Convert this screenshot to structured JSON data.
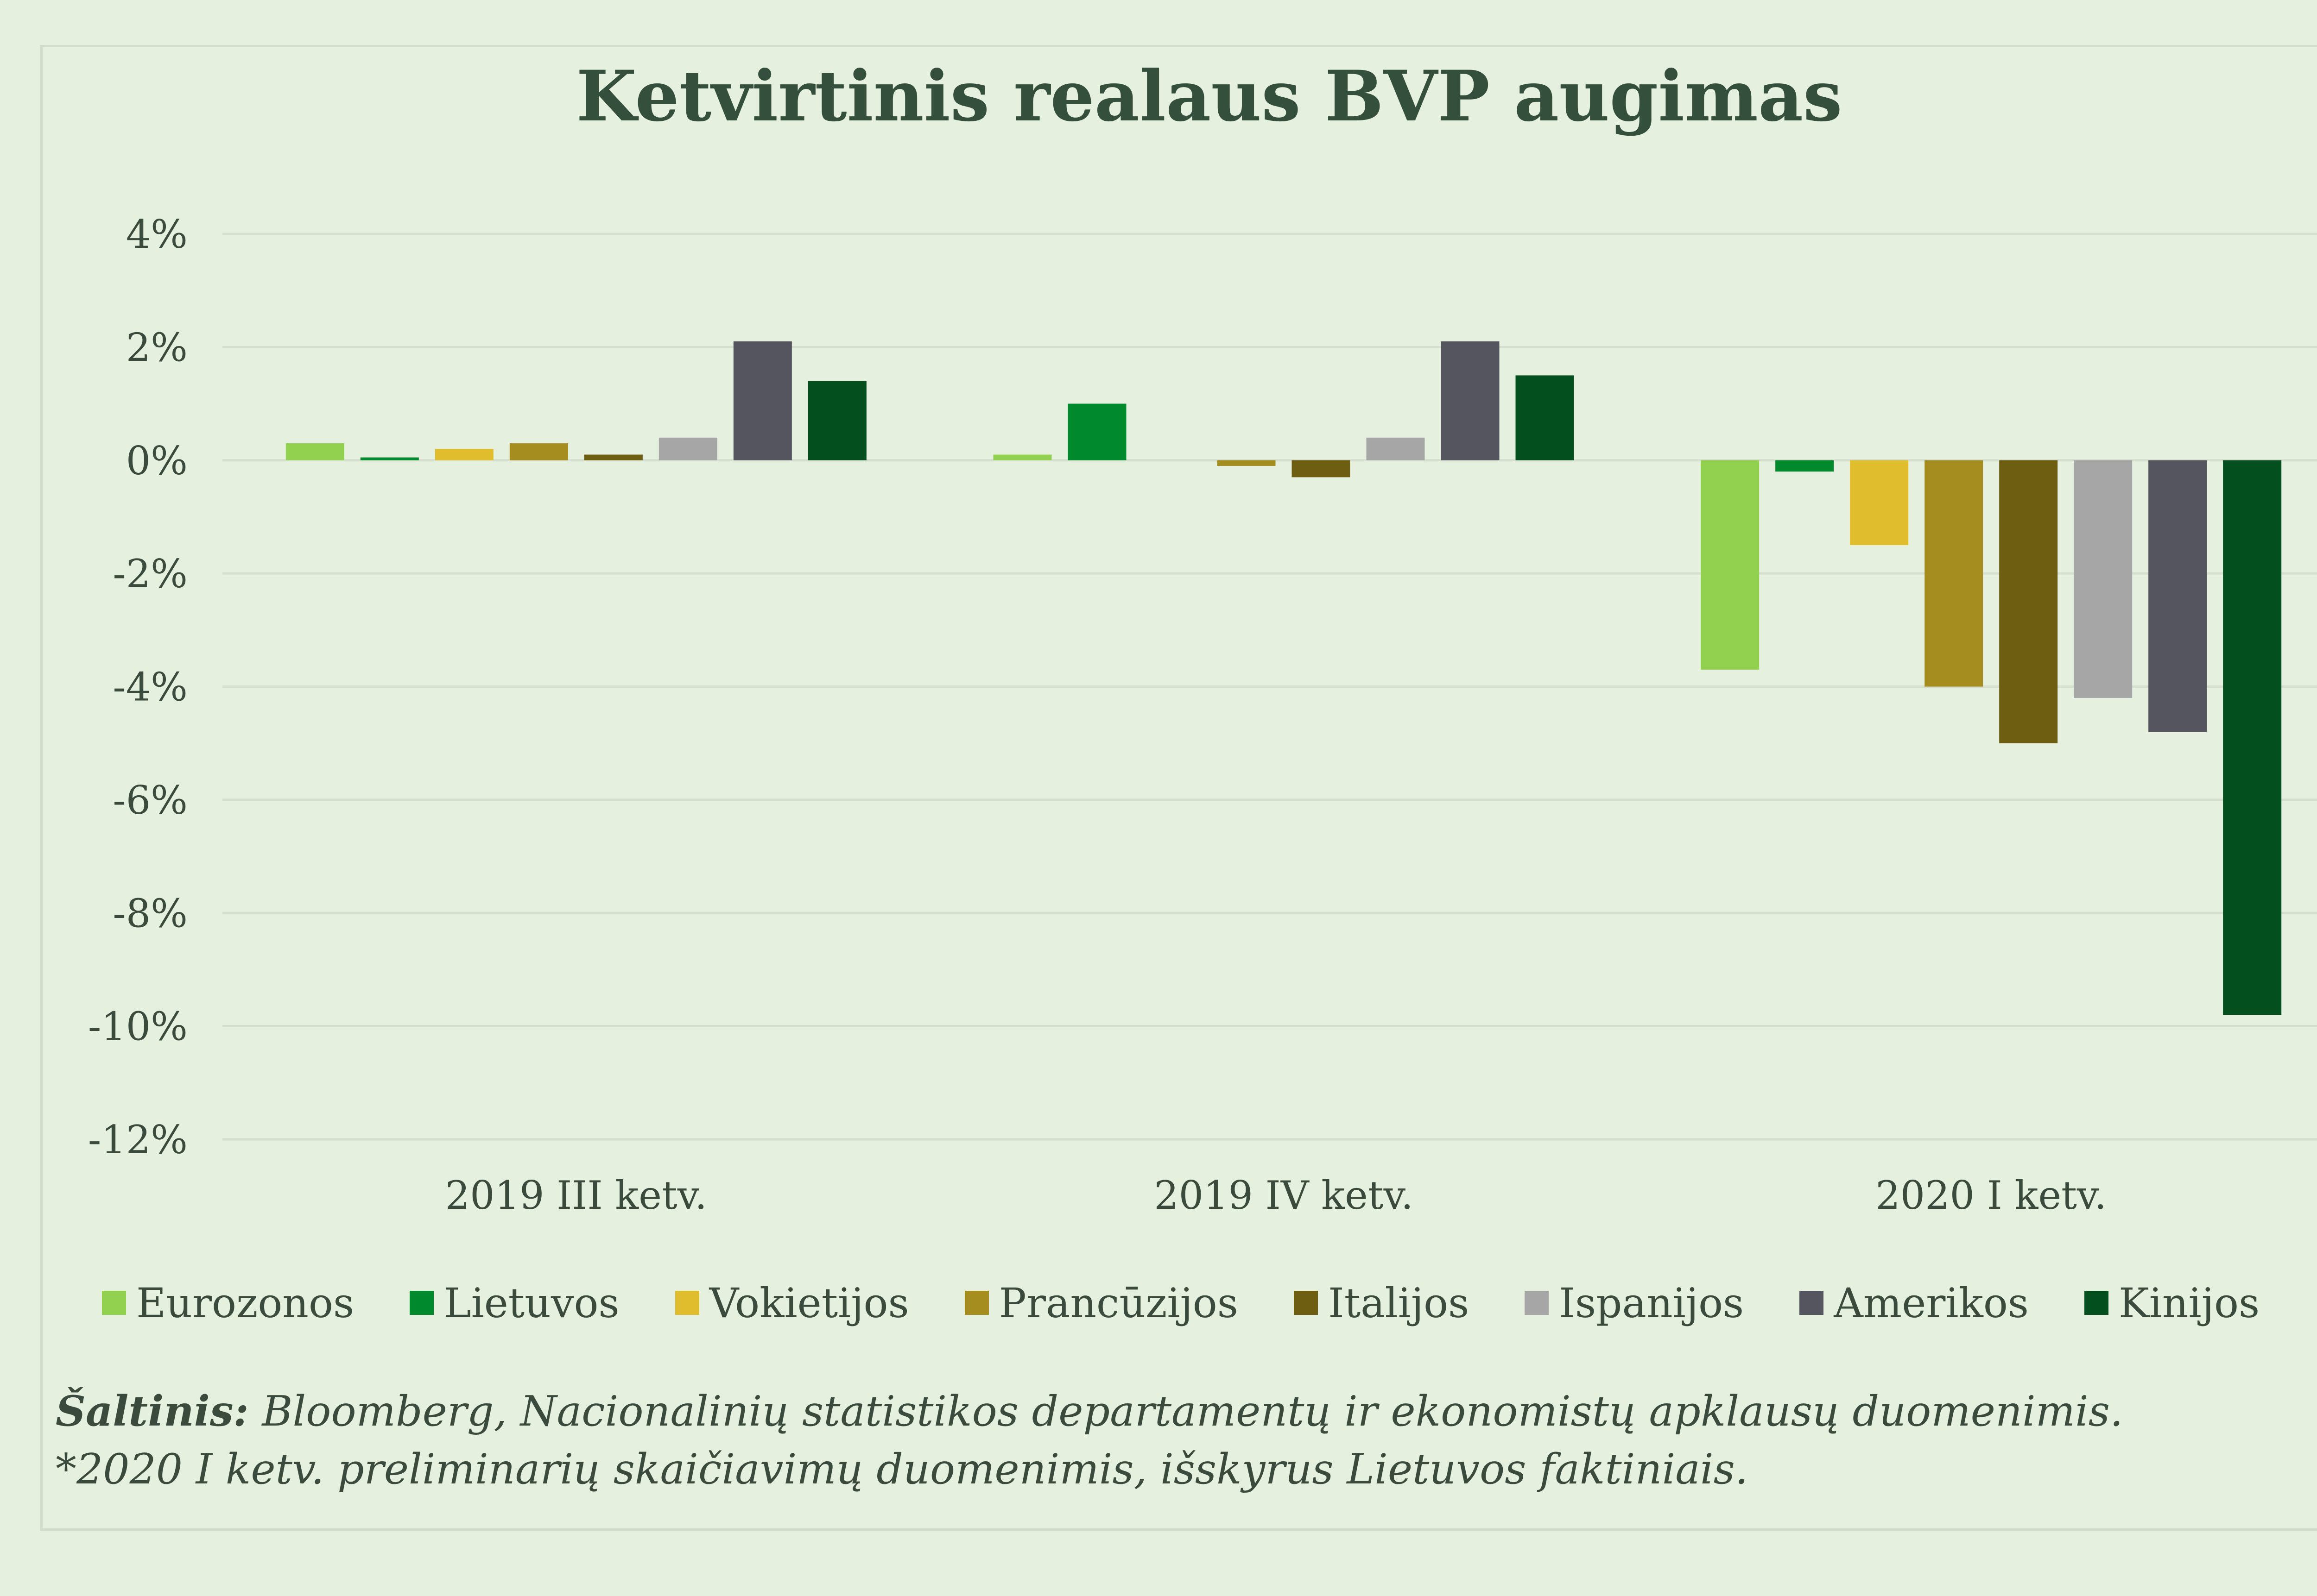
{
  "title": "Ketvirtinis realaus BVP augimas",
  "chart_data": {
    "type": "bar",
    "title": "Ketvirtinis realaus BVP augimas",
    "xlabel": "",
    "ylabel": "",
    "ylim": [
      -12,
      4
    ],
    "yticks": [
      "4%",
      "2%",
      "0%",
      "-2%",
      "-4%",
      "-6%",
      "-8%",
      "-10%",
      "-12%"
    ],
    "ytick_values": [
      4,
      2,
      0,
      -2,
      -4,
      -6,
      -8,
      -10,
      -12
    ],
    "categories": [
      "2019 III ketv.",
      "2019 IV ketv.",
      "2020 I ketv."
    ],
    "grid": true,
    "legend_position": "bottom",
    "series": [
      {
        "name": "Eurozonos",
        "color": "#92d050",
        "values": [
          0.3,
          0.1,
          -3.7
        ]
      },
      {
        "name": "Lietuvos",
        "color": "#008a2e",
        "values": [
          0.05,
          1.0,
          -0.2
        ]
      },
      {
        "name": "Vokietijos",
        "color": "#e0bd2c",
        "values": [
          0.2,
          0.0,
          -1.5
        ]
      },
      {
        "name": "Prancūzijos",
        "color": "#a58d20",
        "values": [
          0.3,
          -0.1,
          -4.0
        ]
      },
      {
        "name": "Italijos",
        "color": "#6e5e12",
        "values": [
          0.1,
          -0.3,
          -5.0
        ]
      },
      {
        "name": "Ispanijos",
        "color": "#a6a6a6",
        "values": [
          0.4,
          0.4,
          -4.2
        ]
      },
      {
        "name": "Amerikos",
        "color": "#55555f",
        "values": [
          2.1,
          2.1,
          -4.8
        ]
      },
      {
        "name": "Kinijos",
        "color": "#03501e",
        "values": [
          1.4,
          1.5,
          -9.8
        ]
      }
    ]
  },
  "source": {
    "label": "Šaltinis:",
    "text": " Bloomberg, Nacionalinių statistikos departamentų ir ekonomistų apklausų duomenimis.",
    "note": "*2020 I ketv. preliminarių skaičiavimų duomenimis, išskyrus Lietuvos faktiniais."
  }
}
